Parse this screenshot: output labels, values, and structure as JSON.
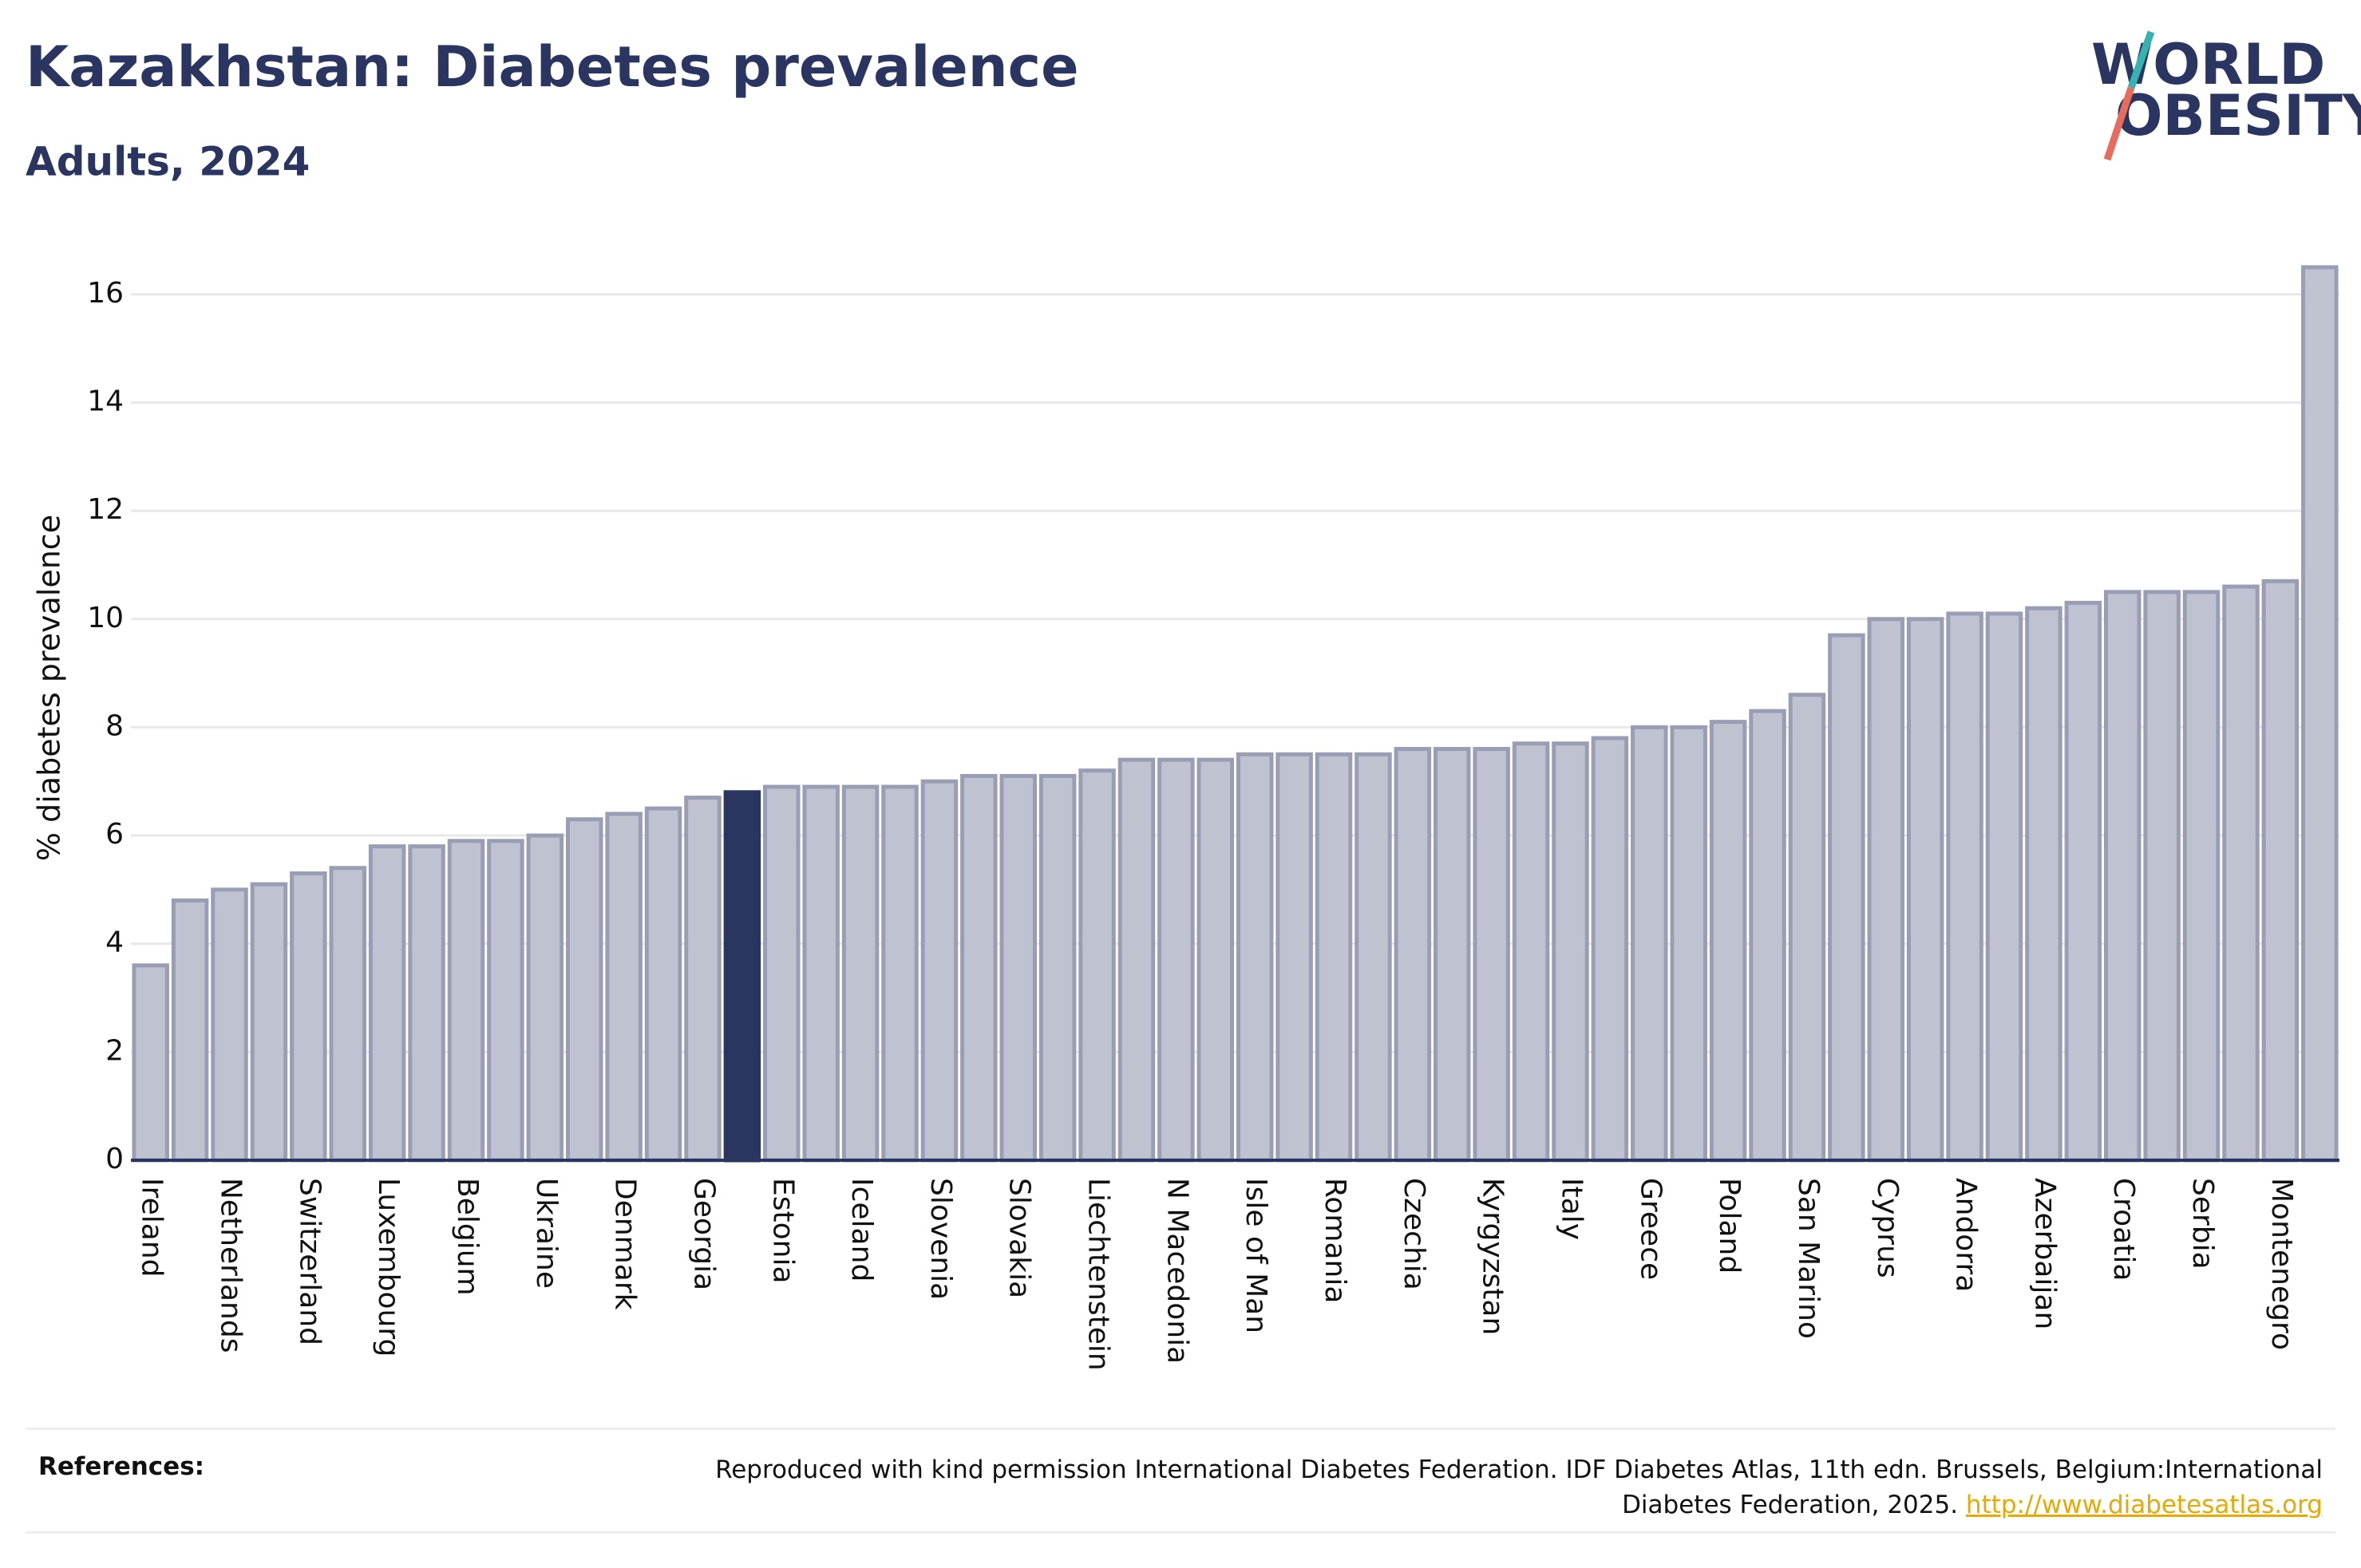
{
  "chart_data": {
    "type": "bar",
    "title": "Kazakhstan: Diabetes prevalence",
    "subtitle": "Adults, 2024",
    "y_label": "% diabetes prevalence",
    "categories": [
      "Ireland",
      null,
      "Netherlands",
      null,
      "Switzerland",
      null,
      "Luxembourg",
      null,
      "Belgium",
      null,
      "Ukraine",
      null,
      "Denmark",
      null,
      "Georgia",
      null,
      "Estonia",
      null,
      "Iceland",
      null,
      "Slovenia",
      null,
      "Slovakia",
      null,
      "Liechtenstein",
      null,
      "N Macedonia",
      null,
      "Isle of Man",
      null,
      "Romania",
      null,
      "Czechia",
      null,
      "Kyrgyzstan",
      null,
      "Italy",
      null,
      "Greece",
      null,
      "Poland",
      null,
      "San Marino",
      null,
      "Cyprus",
      null,
      "Andorra",
      null,
      "Azerbaijan",
      null,
      "Croatia",
      null,
      "Serbia",
      null,
      "Montenegro",
      null
    ],
    "values": [
      3.6,
      4.8,
      5.0,
      5.1,
      5.3,
      5.4,
      5.8,
      5.8,
      5.9,
      5.9,
      6.0,
      6.3,
      6.4,
      6.5,
      6.7,
      6.8,
      6.9,
      6.9,
      6.9,
      6.9,
      7.0,
      7.1,
      7.1,
      7.1,
      7.2,
      7.4,
      7.4,
      7.4,
      7.5,
      7.5,
      7.5,
      7.5,
      7.6,
      7.6,
      7.6,
      7.7,
      7.7,
      7.8,
      8.0,
      8.0,
      8.1,
      8.3,
      8.6,
      9.7,
      10.0,
      10.0,
      10.1,
      10.1,
      10.2,
      10.3,
      10.5,
      10.5,
      10.5,
      10.6,
      10.7,
      16.5
    ],
    "colors": [
      "#bfc2d0",
      "#bfc2d0",
      "#bfc2d0",
      "#bfc2d0",
      "#bfc2d0",
      "#bfc2d0",
      "#bfc2d0",
      "#bfc2d0",
      "#bfc2d0",
      "#bfc2d0",
      "#bfc2d0",
      "#bfc2d0",
      "#bfc2d0",
      "#bfc2d0",
      "#bfc2d0",
      "#2a3562",
      "#bfc2d0",
      "#bfc2d0",
      "#bfc2d0",
      "#bfc2d0",
      "#bfc2d0",
      "#bfc2d0",
      "#bfc2d0",
      "#bfc2d0",
      "#bfc2d0",
      "#bfc2d0",
      "#bfc2d0",
      "#bfc2d0",
      "#bfc2d0",
      "#bfc2d0",
      "#bfc2d0",
      "#bfc2d0",
      "#bfc2d0",
      "#bfc2d0",
      "#bfc2d0",
      "#bfc2d0",
      "#bfc2d0",
      "#bfc2d0",
      "#bfc2d0",
      "#bfc2d0",
      "#bfc2d0",
      "#bfc2d0",
      "#bfc2d0",
      "#bfc2d0",
      "#bfc2d0",
      "#bfc2d0",
      "#bfc2d0",
      "#bfc2d0",
      "#bfc2d0",
      "#bfc2d0",
      "#bfc2d0",
      "#bfc2d0",
      "#bfc2d0",
      "#bfc2d0",
      "#bfc2d0",
      "#bfc2d0"
    ],
    "ylim": [
      0,
      17
    ],
    "yticks": [
      0,
      2,
      4,
      6,
      8,
      10,
      12,
      14,
      16
    ],
    "grid": true
  },
  "logo": [
    "WORLD",
    "OBESITY"
  ],
  "references": {
    "label": "References:",
    "lines": [
      "Reproduced with kind permission International Diabetes Federation. IDF Diabetes Atlas, 11th edn. Brussels, Belgium:International",
      "Diabetes Federation, 2025."
    ],
    "link": "http://www.diabetesatlas.org"
  }
}
